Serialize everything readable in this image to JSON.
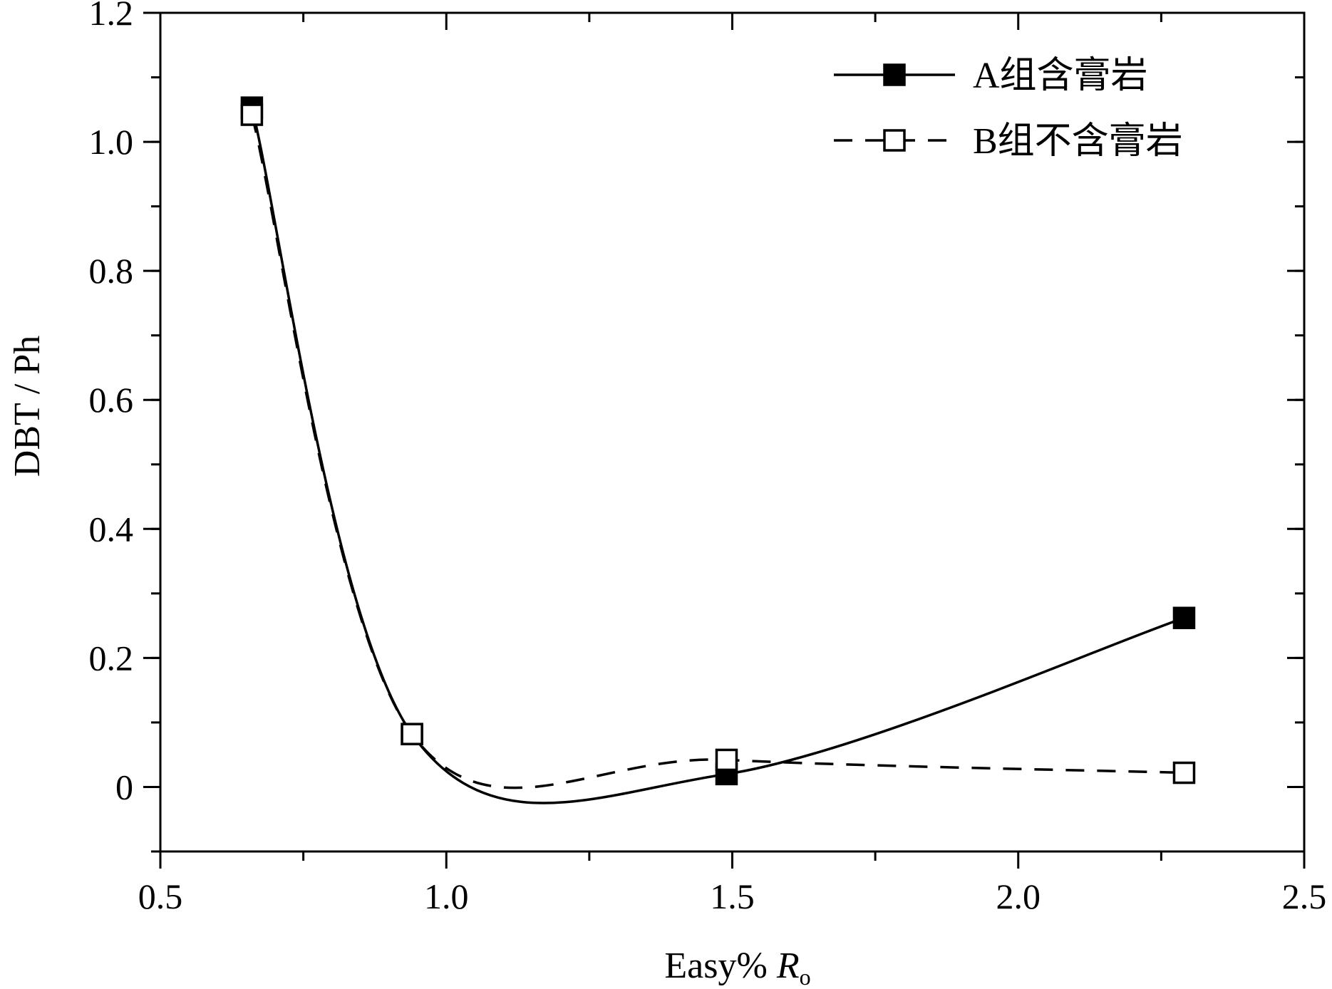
{
  "chart_data": {
    "type": "line",
    "title": "",
    "xlabel": "Easy% ",
    "xlabel_italic": "R",
    "xlabel_sub": "o",
    "ylabel": "DBT / Ph",
    "xlim": [
      0.5,
      2.5
    ],
    "ylim": [
      -0.1,
      1.2
    ],
    "x_ticks": [
      "0.5",
      "1.0",
      "1.5",
      "2.0",
      "2.5"
    ],
    "y_ticks": [
      "0",
      "0.2",
      "0.4",
      "0.6",
      "0.8",
      "1.0",
      "1.2"
    ],
    "grid": false,
    "legend_position": "top-right",
    "series": [
      {
        "name": "A组含膏岩",
        "x": [
          0.66,
          0.94,
          1.49,
          2.29
        ],
        "y": [
          1.053,
          0.082,
          0.02,
          0.262
        ],
        "marker": "filled-square",
        "line": "solid",
        "color": "#000000"
      },
      {
        "name": "B组不含膏岩",
        "x": [
          0.66,
          0.94,
          1.49,
          2.29
        ],
        "y": [
          1.042,
          0.082,
          0.042,
          0.022
        ],
        "marker": "open-square",
        "line": "dashed",
        "color": "#000000"
      }
    ]
  }
}
